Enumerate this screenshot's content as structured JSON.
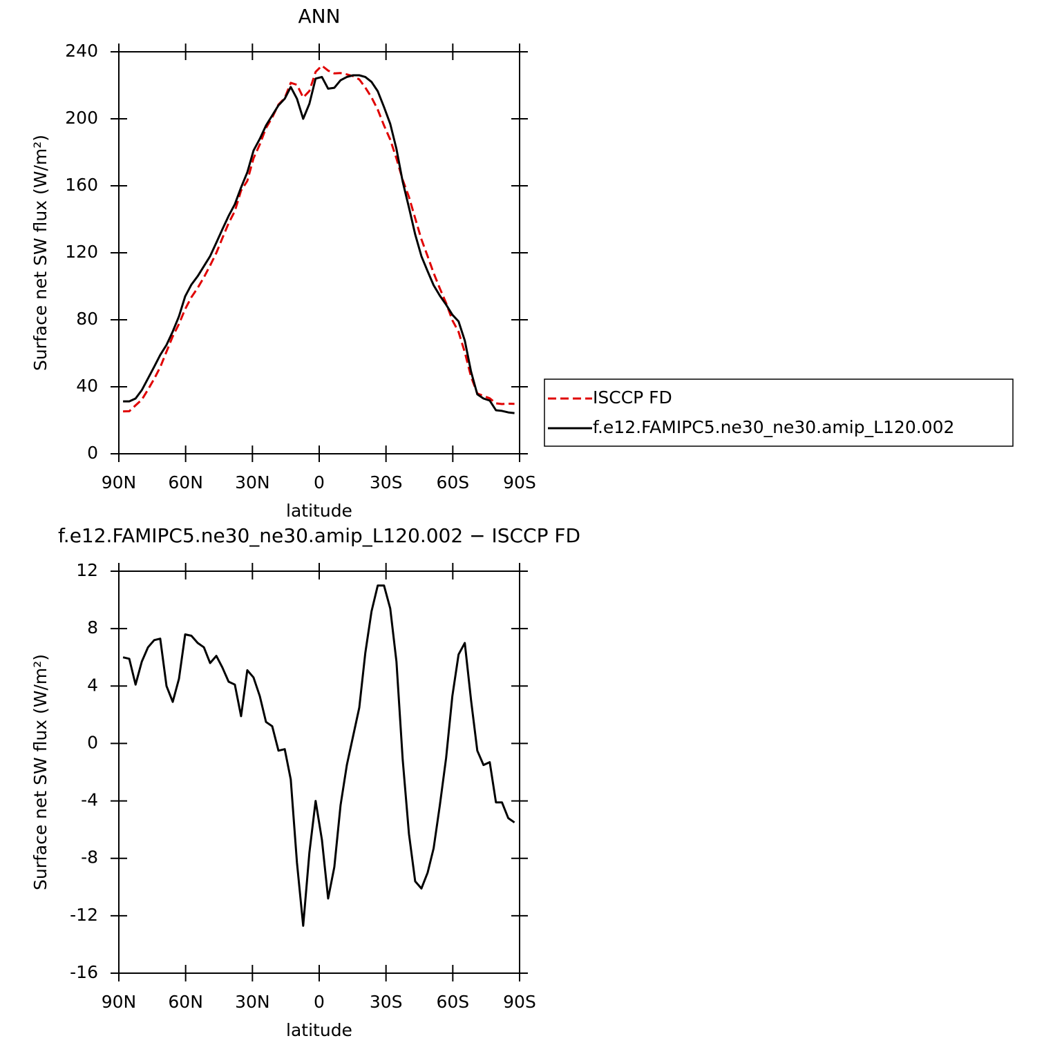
{
  "chart_data": [
    {
      "type": "line",
      "title": "ANN",
      "xlabel": "latitude",
      "ylabel": "Surface net SW flux (W/m²)",
      "xlim": [
        90,
        -90
      ],
      "xticks": [
        {
          "value": 90,
          "label": "90N"
        },
        {
          "value": 60,
          "label": "60N"
        },
        {
          "value": 30,
          "label": "30N"
        },
        0,
        {
          "value": -30,
          "label": "30S"
        },
        {
          "value": -60,
          "label": "60S"
        },
        {
          "value": -90,
          "label": "90S"
        }
      ],
      "ylim": [
        0,
        240
      ],
      "yticks": [
        0,
        40,
        80,
        120,
        160,
        200,
        240
      ],
      "legend": "outside right",
      "x": [
        88.1,
        85.3,
        82.5,
        79.7,
        76.9,
        74.1,
        71.4,
        68.6,
        65.8,
        63.0,
        60.2,
        57.4,
        54.6,
        51.8,
        49.0,
        46.2,
        43.5,
        40.7,
        37.9,
        35.1,
        32.3,
        29.5,
        26.7,
        23.9,
        21.1,
        18.3,
        15.5,
        12.8,
        10.0,
        7.2,
        4.4,
        1.6,
        -1.2,
        -4.0,
        -6.8,
        -9.6,
        -12.4,
        -15.2,
        -18.0,
        -20.7,
        -23.5,
        -26.3,
        -29.1,
        -31.9,
        -34.7,
        -37.5,
        -40.3,
        -43.1,
        -45.9,
        -48.7,
        -51.4,
        -54.2,
        -57.0,
        -59.8,
        -62.6,
        -65.4,
        -68.2,
        -71.0,
        -73.8,
        -76.6,
        -79.4,
        -82.1,
        -84.9,
        -87.7
      ],
      "series": [
        {
          "name": "ISCCP FD",
          "color": "#e00000",
          "dashed": true,
          "values": [
            25.3,
            25.4,
            28.9,
            32.3,
            38.3,
            44.8,
            51.7,
            61,
            70.1,
            77.5,
            86.4,
            93.5,
            99,
            105.3,
            112.4,
            119.9,
            128.7,
            137.7,
            144.9,
            157.1,
            162.9,
            176.4,
            184.7,
            194.5,
            200.8,
            208.5,
            212.4,
            221.5,
            220.3,
            212.7,
            216.6,
            228,
            231.7,
            228.8,
            227.1,
            227.3,
            226.5,
            225.5,
            223.5,
            218.7,
            212.8,
            205.5,
            196,
            187.6,
            176.3,
            163.6,
            153.3,
            140.6,
            128.1,
            118,
            107.9,
            98.7,
            90,
            79.7,
            72.8,
            60.6,
            46,
            36,
            34.5,
            33.1,
            30.1,
            29.7,
            29.9,
            29.8
          ]
        },
        {
          "name": "f.e12.FAMIPC5.ne30_ne30.amip_L120.002",
          "color": "#000000",
          "dashed": false,
          "values": [
            31.3,
            31.3,
            33,
            38,
            45,
            52,
            59,
            65,
            73,
            82,
            94,
            101,
            106,
            112,
            118,
            126,
            134,
            142,
            149,
            159,
            168,
            181,
            188,
            196,
            202,
            208,
            212,
            219,
            212,
            200,
            209,
            224,
            225,
            218,
            218.5,
            223,
            225,
            226,
            226,
            225,
            222,
            216.5,
            207,
            197,
            182,
            162.5,
            147,
            131,
            118,
            109,
            100.6,
            94.4,
            89,
            83,
            79,
            67.6,
            49,
            35.5,
            33,
            31.8,
            26,
            25.6,
            24.7,
            24.3
          ]
        }
      ]
    },
    {
      "type": "line",
      "title": "f.e12.FAMIPC5.ne30_ne30.amip_L120.002 − ISCCP FD",
      "xlabel": "latitude",
      "ylabel": "Surface net SW flux (W/m²)",
      "xlim": [
        90,
        -90
      ],
      "xticks": [
        {
          "value": 90,
          "label": "90N"
        },
        {
          "value": 60,
          "label": "60N"
        },
        {
          "value": 30,
          "label": "30N"
        },
        0,
        {
          "value": -30,
          "label": "30S"
        },
        {
          "value": -60,
          "label": "60S"
        },
        {
          "value": -90,
          "label": "90S"
        }
      ],
      "ylim": [
        -16,
        12
      ],
      "yticks": [
        -16,
        -12,
        -8,
        -4,
        0,
        4,
        8,
        12
      ],
      "color": "#000000",
      "x": [
        88.1,
        85.3,
        82.5,
        79.7,
        76.9,
        74.1,
        71.4,
        68.6,
        65.8,
        63.0,
        60.2,
        57.4,
        54.6,
        51.8,
        49.0,
        46.2,
        43.5,
        40.7,
        37.9,
        35.1,
        32.3,
        29.5,
        26.7,
        23.9,
        21.1,
        18.3,
        15.5,
        12.8,
        10.0,
        7.2,
        4.4,
        1.6,
        -1.2,
        -4.0,
        -6.8,
        -9.6,
        -12.4,
        -15.2,
        -18.0,
        -20.7,
        -23.5,
        -26.3,
        -29.1,
        -31.9,
        -34.7,
        -37.5,
        -40.3,
        -43.1,
        -45.9,
        -48.7,
        -51.4,
        -54.2,
        -57.0,
        -59.8,
        -62.6,
        -65.4,
        -68.2,
        -71.0,
        -73.8,
        -76.6,
        -79.4,
        -82.1,
        -84.9,
        -87.7
      ],
      "values": [
        6.0,
        5.9,
        4.1,
        5.7,
        6.7,
        7.2,
        7.3,
        4.0,
        2.9,
        4.5,
        7.6,
        7.5,
        7.0,
        6.7,
        5.6,
        6.1,
        5.3,
        4.3,
        4.1,
        1.9,
        5.1,
        4.6,
        3.3,
        1.5,
        1.2,
        -0.5,
        -0.4,
        -2.5,
        -8.3,
        -12.7,
        -7.6,
        -4.0,
        -6.7,
        -10.8,
        -8.6,
        -4.3,
        -1.5,
        0.5,
        2.5,
        6.3,
        9.2,
        11.0,
        11.0,
        9.4,
        5.7,
        -1.1,
        -6.3,
        -9.6,
        -10.1,
        -9.0,
        -7.3,
        -4.3,
        -1.0,
        3.3,
        6.2,
        7.0,
        3.0,
        -0.5,
        -1.5,
        -1.3,
        -4.1,
        -4.1,
        -5.2,
        -5.5
      ]
    }
  ]
}
